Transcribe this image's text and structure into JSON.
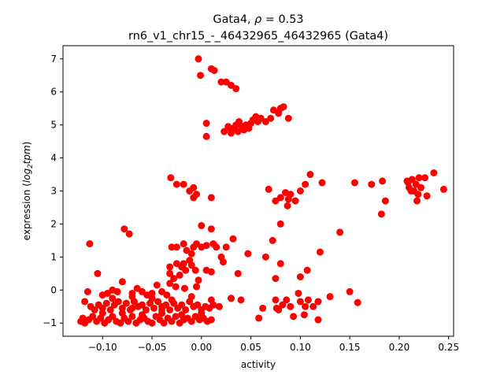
{
  "chart_data": {
    "type": "scatter",
    "title_line1_prefix": "Gata4, ",
    "title_rho_symbol": "ρ",
    "title_rho_value": " = 0.53",
    "title_line2": "rn6_v1_chr15_-_46432965_46432965 (Gata4)",
    "xlabel": "activity",
    "ylabel_prefix": "expression (",
    "ylabel_log": "log",
    "ylabel_sub": "2",
    "ylabel_tpm": "tpm",
    "ylabel_suffix": ")",
    "xlim": [
      -0.14,
      0.255
    ],
    "ylim": [
      -1.4,
      7.4
    ],
    "xticks": [
      -0.1,
      -0.05,
      0.0,
      0.05,
      0.1,
      0.15,
      0.2,
      0.25
    ],
    "xtick_labels": [
      "−0.10",
      "−0.05",
      "0.00",
      "0.05",
      "0.10",
      "0.15",
      "0.20",
      "0.25"
    ],
    "yticks": [
      -1,
      0,
      1,
      2,
      3,
      4,
      5,
      6,
      7
    ],
    "ytick_labels": [
      "−1",
      "0",
      "1",
      "2",
      "3",
      "4",
      "5",
      "6",
      "7"
    ],
    "marker_color": "#ff0000",
    "grid": false,
    "points": [
      [
        -0.003,
        7.0
      ],
      [
        -0.001,
        6.5
      ],
      [
        0.01,
        6.7
      ],
      [
        0.013,
        6.65
      ],
      [
        0.02,
        6.3
      ],
      [
        0.025,
        6.3
      ],
      [
        0.03,
        6.2
      ],
      [
        0.035,
        6.1
      ],
      [
        0.005,
        5.05
      ],
      [
        0.005,
        4.65
      ],
      [
        0.023,
        4.8
      ],
      [
        0.027,
        4.95
      ],
      [
        0.03,
        4.75
      ],
      [
        0.032,
        4.9
      ],
      [
        0.035,
        5.0
      ],
      [
        0.037,
        4.8
      ],
      [
        0.038,
        5.1
      ],
      [
        0.041,
        4.95
      ],
      [
        0.045,
        5.0
      ],
      [
        0.043,
        4.85
      ],
      [
        0.048,
        4.9
      ],
      [
        0.05,
        5.05
      ],
      [
        0.052,
        5.15
      ],
      [
        0.055,
        5.25
      ],
      [
        0.057,
        5.1
      ],
      [
        0.06,
        5.2
      ],
      [
        0.065,
        5.1
      ],
      [
        0.07,
        5.2
      ],
      [
        0.073,
        5.45
      ],
      [
        0.078,
        5.35
      ],
      [
        0.08,
        5.5
      ],
      [
        0.083,
        5.55
      ],
      [
        0.088,
        5.2
      ],
      [
        0.058,
        5.15
      ],
      [
        0.03,
        4.85
      ],
      [
        -0.031,
        3.4
      ],
      [
        -0.025,
        3.2
      ],
      [
        -0.018,
        3.2
      ],
      [
        -0.012,
        3.0
      ],
      [
        -0.008,
        3.1
      ],
      [
        -0.005,
        2.9
      ],
      [
        0.01,
        2.8
      ],
      [
        -0.008,
        2.8
      ],
      [
        0.068,
        3.05
      ],
      [
        0.075,
        2.7
      ],
      [
        0.08,
        2.8
      ],
      [
        0.085,
        2.95
      ],
      [
        0.088,
        2.75
      ],
      [
        0.09,
        2.9
      ],
      [
        0.087,
        2.55
      ],
      [
        0.095,
        2.7
      ],
      [
        0.1,
        3.0
      ],
      [
        0.105,
        3.2
      ],
      [
        0.11,
        3.5
      ],
      [
        0.122,
        3.25
      ],
      [
        0.155,
        3.25
      ],
      [
        0.172,
        3.2
      ],
      [
        0.183,
        3.3
      ],
      [
        0.186,
        2.7
      ],
      [
        0.182,
        2.3
      ],
      [
        0.208,
        3.3
      ],
      [
        0.21,
        3.1
      ],
      [
        0.213,
        3.35
      ],
      [
        0.215,
        3.0
      ],
      [
        0.217,
        3.2
      ],
      [
        0.219,
        2.9
      ],
      [
        0.22,
        3.4
      ],
      [
        0.218,
        2.7
      ],
      [
        0.222,
        3.1
      ],
      [
        0.226,
        3.4
      ],
      [
        0.228,
        2.85
      ],
      [
        0.235,
        3.55
      ],
      [
        0.245,
        3.05
      ],
      [
        0.212,
        3.0
      ],
      [
        0.209,
        3.25
      ],
      [
        0.14,
        1.75
      ],
      [
        0.08,
        2.0
      ],
      [
        0.0,
        1.95
      ],
      [
        0.01,
        1.85
      ],
      [
        -0.078,
        1.85
      ],
      [
        -0.073,
        1.7
      ],
      [
        -0.113,
        1.4
      ],
      [
        0.032,
        1.55
      ],
      [
        0.072,
        1.5
      ],
      [
        0.047,
        1.1
      ],
      [
        0.065,
        1.0
      ],
      [
        0.12,
        1.15
      ],
      [
        0.1,
        0.4
      ],
      [
        0.107,
        0.6
      ],
      [
        0.037,
        0.5
      ],
      [
        0.075,
        0.35
      ],
      [
        0.08,
        0.8
      ],
      [
        -0.105,
        0.5
      ],
      [
        -0.03,
        1.3
      ],
      [
        -0.025,
        1.3
      ],
      [
        -0.018,
        1.4
      ],
      [
        -0.015,
        1.2
      ],
      [
        -0.01,
        1.1
      ],
      [
        -0.008,
        1.3
      ],
      [
        -0.005,
        1.4
      ],
      [
        0.0,
        1.3
      ],
      [
        0.005,
        1.35
      ],
      [
        0.012,
        1.4
      ],
      [
        0.015,
        1.3
      ],
      [
        0.02,
        1.0
      ],
      [
        0.022,
        0.85
      ],
      [
        0.025,
        1.3
      ],
      [
        -0.012,
        0.9
      ],
      [
        -0.018,
        0.8
      ],
      [
        -0.02,
        0.7
      ],
      [
        -0.025,
        0.8
      ],
      [
        -0.032,
        0.7
      ],
      [
        -0.032,
        0.5
      ],
      [
        -0.028,
        0.35
      ],
      [
        -0.022,
        0.45
      ],
      [
        -0.016,
        0.6
      ],
      [
        -0.01,
        0.75
      ],
      [
        -0.006,
        0.6
      ],
      [
        -0.003,
        0.3
      ],
      [
        -0.032,
        0.2
      ],
      [
        -0.026,
        0.1
      ],
      [
        -0.017,
        0.05
      ],
      [
        -0.005,
        0.1
      ],
      [
        0.005,
        0.6
      ],
      [
        0.01,
        0.55
      ],
      [
        -0.08,
        0.25
      ],
      [
        -0.065,
        0.05
      ],
      [
        -0.045,
        0.15
      ],
      [
        -0.09,
        0.0
      ],
      [
        -0.1,
        -0.15
      ],
      [
        -0.095,
        -0.1
      ],
      [
        -0.085,
        -0.05
      ],
      [
        -0.07,
        -0.1
      ],
      [
        -0.06,
        -0.05
      ],
      [
        -0.055,
        -0.15
      ],
      [
        -0.05,
        -0.1
      ],
      [
        -0.04,
        -0.05
      ],
      [
        -0.035,
        -0.15
      ],
      [
        -0.115,
        -0.05
      ],
      [
        -0.118,
        -0.35
      ],
      [
        -0.112,
        -0.5
      ],
      [
        -0.108,
        -0.6
      ],
      [
        -0.104,
        -0.45
      ],
      [
        -0.1,
        -0.55
      ],
      [
        -0.096,
        -0.4
      ],
      [
        -0.092,
        -0.6
      ],
      [
        -0.088,
        -0.45
      ],
      [
        -0.084,
        -0.35
      ],
      [
        -0.08,
        -0.55
      ],
      [
        -0.076,
        -0.4
      ],
      [
        -0.072,
        -0.6
      ],
      [
        -0.068,
        -0.35
      ],
      [
        -0.064,
        -0.5
      ],
      [
        -0.06,
        -0.45
      ],
      [
        -0.056,
        -0.6
      ],
      [
        -0.052,
        -0.4
      ],
      [
        -0.048,
        -0.55
      ],
      [
        -0.044,
        -0.35
      ],
      [
        -0.04,
        -0.5
      ],
      [
        -0.036,
        -0.45
      ],
      [
        -0.032,
        -0.6
      ],
      [
        -0.028,
        -0.4
      ],
      [
        -0.024,
        -0.55
      ],
      [
        -0.02,
        -0.45
      ],
      [
        -0.016,
        -0.6
      ],
      [
        -0.012,
        -0.35
      ],
      [
        -0.008,
        -0.5
      ],
      [
        -0.004,
        -0.45
      ],
      [
        0.0,
        -0.6
      ],
      [
        0.004,
        -0.5
      ],
      [
        0.008,
        -0.55
      ],
      [
        0.012,
        -0.45
      ],
      [
        0.018,
        -0.5
      ],
      [
        -0.122,
        -0.95
      ],
      [
        -0.12,
        -0.85
      ],
      [
        -0.118,
        -1.0
      ],
      [
        -0.114,
        -0.9
      ],
      [
        -0.11,
        -0.8
      ],
      [
        -0.106,
        -0.95
      ],
      [
        -0.102,
        -0.85
      ],
      [
        -0.098,
        -1.0
      ],
      [
        -0.094,
        -0.9
      ],
      [
        -0.09,
        -0.8
      ],
      [
        -0.086,
        -0.95
      ],
      [
        -0.082,
        -1.0
      ],
      [
        -0.078,
        -0.85
      ],
      [
        -0.074,
        -0.95
      ],
      [
        -0.07,
        -0.8
      ],
      [
        -0.066,
        -1.0
      ],
      [
        -0.062,
        -0.9
      ],
      [
        -0.058,
        -0.85
      ],
      [
        -0.054,
        -0.95
      ],
      [
        -0.05,
        -1.0
      ],
      [
        -0.046,
        -0.8
      ],
      [
        -0.042,
        -0.9
      ],
      [
        -0.038,
        -1.0
      ],
      [
        -0.034,
        -0.85
      ],
      [
        -0.03,
        -0.95
      ],
      [
        -0.026,
        -0.8
      ],
      [
        -0.022,
        -1.0
      ],
      [
        -0.018,
        -0.9
      ],
      [
        -0.014,
        -0.85
      ],
      [
        -0.01,
        -0.95
      ],
      [
        -0.006,
        -0.8
      ],
      [
        -0.002,
        -0.9
      ],
      [
        0.002,
        -0.85
      ],
      [
        0.006,
        -0.95
      ],
      [
        0.01,
        -0.9
      ],
      [
        -0.1,
        -0.7
      ],
      [
        -0.08,
        -0.7
      ],
      [
        -0.06,
        -0.75
      ],
      [
        -0.04,
        -0.7
      ],
      [
        -0.02,
        -0.75
      ],
      [
        0.0,
        -0.7
      ],
      [
        -0.09,
        -0.25
      ],
      [
        -0.07,
        -0.2
      ],
      [
        -0.05,
        -0.25
      ],
      [
        -0.03,
        -0.3
      ],
      [
        -0.01,
        -0.2
      ],
      [
        0.01,
        -0.3
      ],
      [
        0.03,
        -0.25
      ],
      [
        0.04,
        -0.3
      ],
      [
        0.058,
        -0.85
      ],
      [
        0.062,
        -0.55
      ],
      [
        0.075,
        -0.3
      ],
      [
        0.078,
        -0.6
      ],
      [
        0.082,
        -0.45
      ],
      [
        0.086,
        -0.3
      ],
      [
        0.09,
        -0.5
      ],
      [
        0.093,
        -0.8
      ],
      [
        0.098,
        -0.1
      ],
      [
        0.1,
        -0.35
      ],
      [
        0.105,
        -0.5
      ],
      [
        0.108,
        -0.3
      ],
      [
        0.113,
        -0.5
      ],
      [
        0.118,
        -0.35
      ],
      [
        0.118,
        -0.9
      ],
      [
        0.13,
        -0.2
      ],
      [
        0.15,
        -0.05
      ],
      [
        0.158,
        -0.38
      ],
      [
        0.104,
        -0.75
      ],
      [
        0.076,
        -0.55
      ],
      [
        -0.07,
        -0.55
      ],
      [
        -0.04,
        -0.6
      ]
    ]
  }
}
